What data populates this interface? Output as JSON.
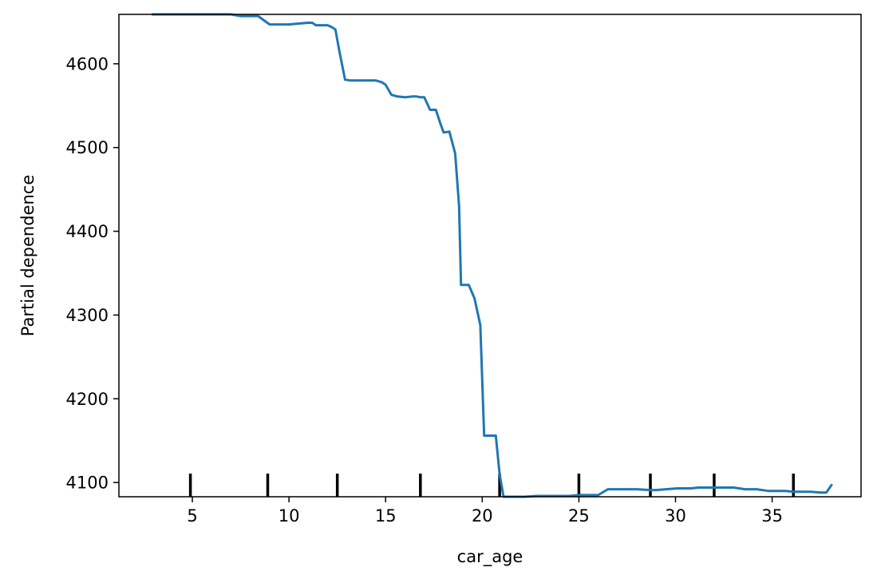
{
  "chart_data": {
    "type": "line",
    "title": "",
    "xlabel": "car_age",
    "ylabel": "Partial dependence",
    "xlim": [
      1.2,
      39.6
    ],
    "ylim": [
      4083,
      4659
    ],
    "grid": false,
    "legend": "none",
    "series_color": "#1f77b4",
    "xticks": [
      5,
      10,
      15,
      20,
      25,
      30,
      35
    ],
    "yticks": [
      4100,
      4200,
      4300,
      4400,
      4500,
      4600
    ],
    "deciles": [
      4.9,
      8.9,
      12.5,
      16.8,
      20.9,
      25.0,
      28.7,
      32.0,
      36.1
    ],
    "series": [
      {
        "x": [
          2.9,
          3.5,
          4.0,
          5.0,
          6.0,
          7.0,
          7.5,
          8.0,
          8.2,
          8.4,
          9.0,
          9.5,
          10.0,
          10.5,
          11.0,
          11.2,
          11.4,
          11.8,
          12.0,
          12.2,
          12.4,
          12.6,
          12.9,
          13.2,
          13.8,
          14.5,
          14.8,
          15.0,
          15.3,
          15.6,
          16.0,
          16.4,
          16.6,
          16.8,
          17.0,
          17.3,
          17.6,
          17.8,
          18.0,
          18.3,
          18.6,
          18.8,
          18.9,
          19.1,
          19.3,
          19.6,
          19.9,
          20.1,
          20.3,
          20.7,
          20.9,
          21.1,
          21.3,
          21.6,
          22.2,
          22.8,
          23.5,
          24.0,
          24.5,
          25.0,
          25.7,
          26.0,
          26.5,
          27.0,
          27.6,
          28.0,
          28.7,
          29.0,
          29.5,
          30.1,
          30.3,
          30.8,
          31.2,
          31.6,
          32.0,
          32.5,
          33.0,
          33.6,
          33.9,
          34.2,
          34.8,
          35.3,
          35.7,
          36.1,
          36.8,
          37.0,
          37.5,
          37.8,
          38.1
        ],
        "y": [
          4659,
          4659,
          4659,
          4659,
          4659,
          4659,
          4657,
          4657,
          4657,
          4657,
          4647,
          4647,
          4647,
          4648,
          4649,
          4649,
          4646,
          4646,
          4646,
          4644,
          4641,
          4616,
          4581,
          4580,
          4580,
          4580,
          4578,
          4575,
          4563,
          4561,
          4560,
          4561,
          4561,
          4560,
          4560,
          4545,
          4545,
          4531,
          4518,
          4519,
          4493,
          4430,
          4336,
          4336,
          4336,
          4320,
          4288,
          4156,
          4156,
          4156,
          4110,
          4083,
          4083,
          4083,
          4083,
          4084,
          4084,
          4084,
          4084,
          4085,
          4085,
          4085,
          4092,
          4092,
          4092,
          4092,
          4091,
          4091,
          4092,
          4093,
          4093,
          4093,
          4094,
          4094,
          4094,
          4094,
          4094,
          4092,
          4092,
          4092,
          4090,
          4090,
          4090,
          4089,
          4089,
          4089,
          4088,
          4088,
          4098
        ]
      }
    ]
  }
}
